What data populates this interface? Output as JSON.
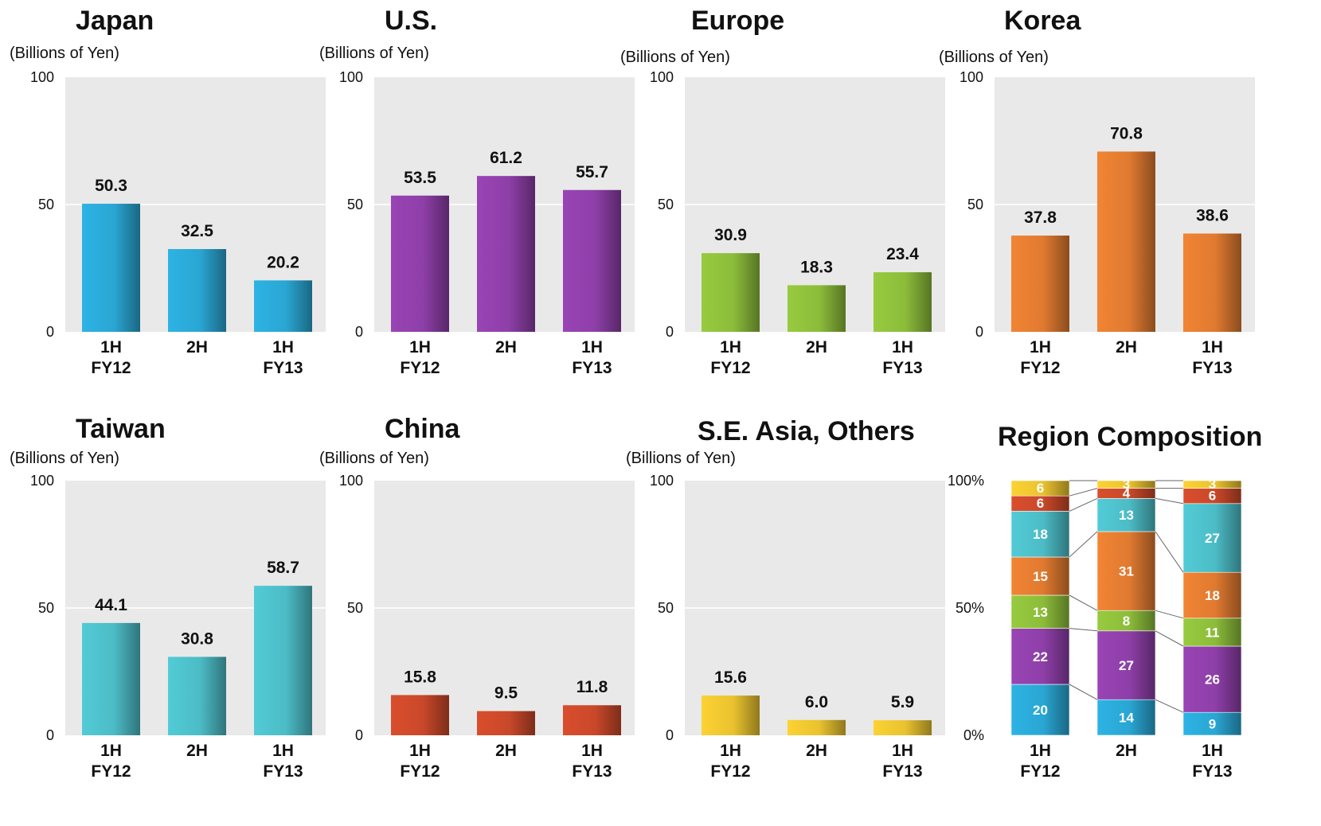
{
  "chart_data": [
    {
      "type": "bar",
      "title": "Japan",
      "ylabel": "(Billions of Yen)",
      "ylim": [
        0,
        100
      ],
      "yticks": [
        0,
        50,
        100
      ],
      "categories": [
        [
          "1H",
          "FY12"
        ],
        [
          "2H"
        ],
        [
          "1H",
          "FY13"
        ]
      ],
      "values": [
        50.3,
        32.5,
        20.2
      ],
      "value_labels": [
        "50.3",
        "32.5",
        "20.2"
      ],
      "color": "#2aa6d3",
      "grid": true
    },
    {
      "type": "bar",
      "title": "U.S.",
      "ylabel": "(Billions of Yen)",
      "ylim": [
        0,
        100
      ],
      "yticks": [
        0,
        50,
        100
      ],
      "categories": [
        [
          "1H",
          "FY12"
        ],
        [
          "2H"
        ],
        [
          "1H",
          "FY13"
        ]
      ],
      "values": [
        53.5,
        61.2,
        55.7
      ],
      "value_labels": [
        "53.5",
        "61.2",
        "55.7"
      ],
      "color": "#8e3fa8",
      "grid": true
    },
    {
      "type": "bar",
      "title": "Europe",
      "ylabel": "(Billions of Yen)",
      "ylim": [
        0,
        100
      ],
      "yticks": [
        0,
        50,
        100
      ],
      "categories": [
        [
          "1H",
          "FY12"
        ],
        [
          "2H"
        ],
        [
          "1H",
          "FY13"
        ]
      ],
      "values": [
        30.9,
        18.3,
        23.4
      ],
      "value_labels": [
        "30.9",
        "18.3",
        "23.4"
      ],
      "color": "#8cbc3a",
      "grid": true
    },
    {
      "type": "bar",
      "title": "Korea",
      "ylabel": "(Billions of Yen)",
      "ylim": [
        0,
        100
      ],
      "yticks": [
        0,
        50,
        100
      ],
      "categories": [
        [
          "1H",
          "FY12"
        ],
        [
          "2H"
        ],
        [
          "1H",
          "FY13"
        ]
      ],
      "values": [
        37.8,
        70.8,
        38.6
      ],
      "value_labels": [
        "37.8",
        "70.8",
        "38.6"
      ],
      "color": "#e07a30",
      "grid": true
    },
    {
      "type": "bar",
      "title": "Taiwan",
      "ylabel": "(Billions of Yen)",
      "ylim": [
        0,
        100
      ],
      "yticks": [
        0,
        50,
        100
      ],
      "categories": [
        [
          "1H",
          "FY12"
        ],
        [
          "2H"
        ],
        [
          "1H",
          "FY13"
        ]
      ],
      "values": [
        44.1,
        30.8,
        58.7
      ],
      "value_labels": [
        "44.1",
        "30.8",
        "58.7"
      ],
      "color": "#4cbcc6",
      "grid": true
    },
    {
      "type": "bar",
      "title": "China",
      "ylabel": "(Billions of Yen)",
      "ylim": [
        0,
        100
      ],
      "yticks": [
        0,
        50,
        100
      ],
      "categories": [
        [
          "1H",
          "FY12"
        ],
        [
          "2H"
        ],
        [
          "1H",
          "FY13"
        ]
      ],
      "values": [
        15.8,
        9.5,
        11.8
      ],
      "value_labels": [
        "15.8",
        "9.5",
        "11.8"
      ],
      "color": "#c9482a",
      "grid": true
    },
    {
      "type": "bar",
      "title": "S.E. Asia, Others",
      "ylabel": "(Billions of Yen)",
      "ylim": [
        0,
        100
      ],
      "yticks": [
        0,
        50,
        100
      ],
      "categories": [
        [
          "1H",
          "FY12"
        ],
        [
          "2H"
        ],
        [
          "1H",
          "FY13"
        ]
      ],
      "values": [
        15.6,
        6.0,
        5.9
      ],
      "value_labels": [
        "15.6",
        "6.0",
        "5.9"
      ],
      "color": "#e9c22f",
      "grid": true
    },
    {
      "type": "stacked-bar",
      "title": "Region Composition",
      "ylim": [
        0,
        100
      ],
      "yticks": [
        "0%",
        "50%",
        "100%"
      ],
      "categories": [
        [
          "1H",
          "FY12"
        ],
        [
          "2H"
        ],
        [
          "1H",
          "FY13"
        ]
      ],
      "series": [
        {
          "name": "Japan",
          "color": "#2aa6d3",
          "values": [
            20,
            14,
            9
          ]
        },
        {
          "name": "U.S.",
          "color": "#8e3fa8",
          "values": [
            22,
            27,
            26
          ]
        },
        {
          "name": "Europe",
          "color": "#8cbc3a",
          "values": [
            13,
            8,
            11
          ]
        },
        {
          "name": "Korea",
          "color": "#e07a30",
          "values": [
            15,
            31,
            18
          ]
        },
        {
          "name": "Taiwan",
          "color": "#4cbcc6",
          "values": [
            18,
            13,
            27
          ]
        },
        {
          "name": "China",
          "color": "#c9482a",
          "values": [
            6,
            4,
            6
          ]
        },
        {
          "name": "S.E. Asia, Others",
          "color": "#e9c22f",
          "values": [
            6,
            3,
            3
          ]
        }
      ],
      "connector_lines": true
    }
  ]
}
